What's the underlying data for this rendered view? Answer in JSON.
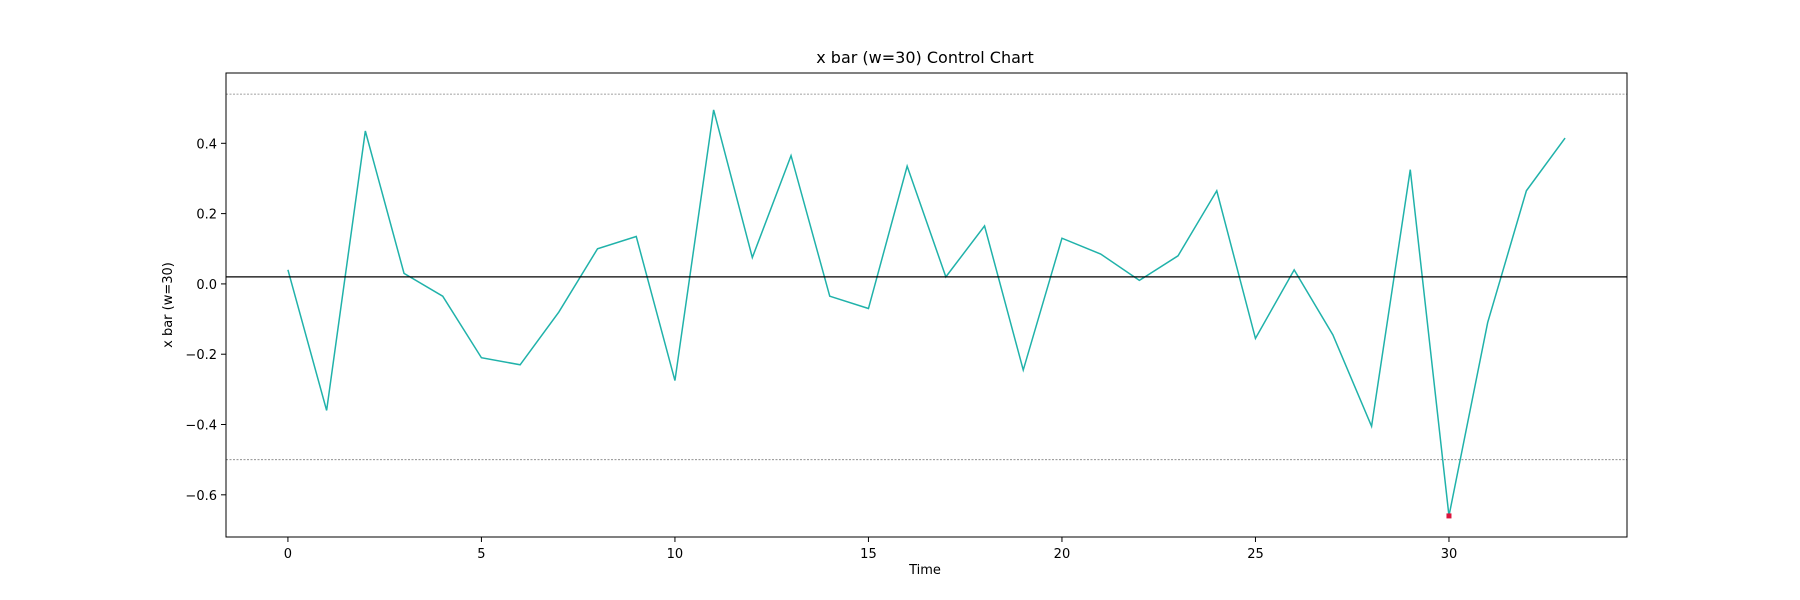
{
  "chart_data": {
    "type": "line",
    "title": "x bar (w=30) Control Chart",
    "xlabel": "Time",
    "ylabel": "x bar (w=30)",
    "xlim": [
      -1.6,
      34.6
    ],
    "ylim": [
      -0.72,
      0.6
    ],
    "xticks": [
      0,
      5,
      10,
      15,
      20,
      25,
      30
    ],
    "yticks": [
      -0.6,
      -0.4,
      -0.2,
      0.0,
      0.2,
      0.4
    ],
    "ytick_labels": [
      "−0.6",
      "−0.4",
      "−0.2",
      "0.0",
      "0.2",
      "0.4"
    ],
    "grid": false,
    "center_line": 0.02,
    "upper_control_limit": 0.54,
    "lower_control_limit": -0.5,
    "series": [
      {
        "x": [
          0,
          1,
          2,
          3,
          4,
          5,
          6,
          7,
          8,
          9,
          10,
          11,
          12,
          13,
          14,
          15,
          16,
          17,
          18,
          19,
          20,
          21,
          22,
          23,
          24,
          25,
          26,
          27,
          28,
          29,
          30,
          31,
          32,
          33
        ],
        "values": [
          0.04,
          -0.36,
          0.435,
          0.03,
          -0.035,
          -0.21,
          -0.23,
          -0.08,
          0.1,
          0.135,
          -0.275,
          0.495,
          0.075,
          0.365,
          -0.035,
          -0.07,
          0.335,
          0.02,
          0.165,
          -0.245,
          0.13,
          0.085,
          0.01,
          0.08,
          0.265,
          -0.155,
          0.04,
          -0.145,
          -0.405,
          0.325,
          -0.66,
          -0.11,
          0.265,
          0.415
        ],
        "color": "#20b2aa"
      }
    ],
    "out_of_control_points": [
      {
        "x": 30,
        "y": -0.66,
        "color": "#dc143c"
      }
    ],
    "center_line_color": "#000000",
    "limit_line_color": "#808080"
  }
}
